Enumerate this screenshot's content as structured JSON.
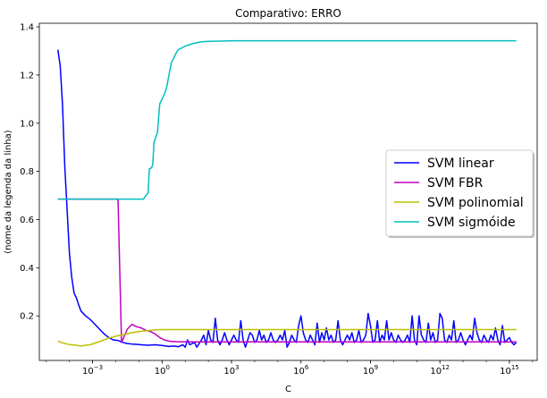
{
  "chart_data": {
    "type": "line",
    "title": "Comparativo: ERRO",
    "xlabel": "C",
    "ylabel": "(nome da legenda da linha)",
    "xscale": "log",
    "xlim_exponent": [
      -5.3,
      16.2
    ],
    "ylim": [
      0.015,
      1.415
    ],
    "xticks": [
      {
        "exp": -3,
        "label": "10",
        "sup": "−3"
      },
      {
        "exp": 0,
        "label": "10",
        "sup": "0"
      },
      {
        "exp": 3,
        "label": "10",
        "sup": "3"
      },
      {
        "exp": 6,
        "label": "10",
        "sup": "6"
      },
      {
        "exp": 9,
        "label": "10",
        "sup": "9"
      },
      {
        "exp": 12,
        "label": "10",
        "sup": "12"
      },
      {
        "exp": 15,
        "label": "10",
        "sup": "15"
      }
    ],
    "yticks": [
      {
        "value": 0.2,
        "label": "0.2"
      },
      {
        "value": 0.4,
        "label": "0.4"
      },
      {
        "value": 0.6,
        "label": "0.6"
      },
      {
        "value": 0.8,
        "label": "0.8"
      },
      {
        "value": 1.0,
        "label": "1.0"
      },
      {
        "value": 1.2,
        "label": "1.2"
      },
      {
        "value": 1.4,
        "label": "1.4"
      }
    ],
    "grid": false,
    "legend_position": "center-right",
    "series": [
      {
        "name": "SVM linear",
        "color": "#0000ff",
        "points": [
          [
            -4.5,
            1.305
          ],
          [
            -4.4,
            1.24
          ],
          [
            -4.3,
            1.08
          ],
          [
            -4.2,
            0.82
          ],
          [
            -4.1,
            0.64
          ],
          [
            -4.0,
            0.46
          ],
          [
            -3.9,
            0.36
          ],
          [
            -3.8,
            0.295
          ],
          [
            -3.7,
            0.275
          ],
          [
            -3.6,
            0.245
          ],
          [
            -3.5,
            0.22
          ],
          [
            -3.3,
            0.2
          ],
          [
            -3.1,
            0.185
          ],
          [
            -2.9,
            0.165
          ],
          [
            -2.7,
            0.145
          ],
          [
            -2.5,
            0.125
          ],
          [
            -2.3,
            0.11
          ],
          [
            -2.1,
            0.1
          ],
          [
            -1.9,
            0.098
          ],
          [
            -1.7,
            0.09
          ],
          [
            -1.5,
            0.085
          ],
          [
            -1.3,
            0.083
          ],
          [
            -1.1,
            0.082
          ],
          [
            -0.9,
            0.08
          ],
          [
            -0.6,
            0.078
          ],
          [
            -0.3,
            0.08
          ],
          [
            0.0,
            0.077
          ],
          [
            0.3,
            0.073
          ],
          [
            0.5,
            0.075
          ],
          [
            0.7,
            0.072
          ],
          [
            0.9,
            0.08
          ],
          [
            1.0,
            0.07
          ],
          [
            1.1,
            0.1
          ],
          [
            1.2,
            0.08
          ],
          [
            1.4,
            0.09
          ],
          [
            1.5,
            0.07
          ],
          [
            1.7,
            0.1
          ],
          [
            1.8,
            0.12
          ],
          [
            1.9,
            0.08
          ],
          [
            2.0,
            0.14
          ],
          [
            2.1,
            0.1
          ],
          [
            2.2,
            0.09
          ],
          [
            2.3,
            0.19
          ],
          [
            2.4,
            0.1
          ],
          [
            2.5,
            0.08
          ],
          [
            2.6,
            0.1
          ],
          [
            2.7,
            0.13
          ],
          [
            2.8,
            0.1
          ],
          [
            2.9,
            0.08
          ],
          [
            3.0,
            0.1
          ],
          [
            3.1,
            0.12
          ],
          [
            3.2,
            0.1
          ],
          [
            3.3,
            0.09
          ],
          [
            3.4,
            0.18
          ],
          [
            3.5,
            0.1
          ],
          [
            3.6,
            0.07
          ],
          [
            3.7,
            0.1
          ],
          [
            3.8,
            0.13
          ],
          [
            3.9,
            0.12
          ],
          [
            4.0,
            0.09
          ],
          [
            4.1,
            0.1
          ],
          [
            4.2,
            0.14
          ],
          [
            4.3,
            0.1
          ],
          [
            4.4,
            0.12
          ],
          [
            4.5,
            0.09
          ],
          [
            4.6,
            0.1
          ],
          [
            4.7,
            0.13
          ],
          [
            4.8,
            0.1
          ],
          [
            4.9,
            0.09
          ],
          [
            5.0,
            0.1
          ],
          [
            5.1,
            0.12
          ],
          [
            5.2,
            0.1
          ],
          [
            5.3,
            0.14
          ],
          [
            5.4,
            0.07
          ],
          [
            5.5,
            0.09
          ],
          [
            5.6,
            0.12
          ],
          [
            5.7,
            0.1
          ],
          [
            5.8,
            0.09
          ],
          [
            5.9,
            0.16
          ],
          [
            6.0,
            0.2
          ],
          [
            6.1,
            0.13
          ],
          [
            6.2,
            0.1
          ],
          [
            6.3,
            0.09
          ],
          [
            6.4,
            0.12
          ],
          [
            6.5,
            0.1
          ],
          [
            6.6,
            0.08
          ],
          [
            6.7,
            0.17
          ],
          [
            6.8,
            0.09
          ],
          [
            6.9,
            0.13
          ],
          [
            7.0,
            0.1
          ],
          [
            7.1,
            0.15
          ],
          [
            7.2,
            0.1
          ],
          [
            7.3,
            0.12
          ],
          [
            7.4,
            0.09
          ],
          [
            7.5,
            0.1
          ],
          [
            7.6,
            0.18
          ],
          [
            7.7,
            0.1
          ],
          [
            7.8,
            0.08
          ],
          [
            7.9,
            0.1
          ],
          [
            8.0,
            0.12
          ],
          [
            8.1,
            0.1
          ],
          [
            8.2,
            0.13
          ],
          [
            8.3,
            0.09
          ],
          [
            8.4,
            0.1
          ],
          [
            8.5,
            0.14
          ],
          [
            8.6,
            0.09
          ],
          [
            8.7,
            0.1
          ],
          [
            8.8,
            0.12
          ],
          [
            8.9,
            0.21
          ],
          [
            9.0,
            0.16
          ],
          [
            9.1,
            0.09
          ],
          [
            9.2,
            0.1
          ],
          [
            9.3,
            0.18
          ],
          [
            9.4,
            0.09
          ],
          [
            9.5,
            0.12
          ],
          [
            9.6,
            0.1
          ],
          [
            9.7,
            0.18
          ],
          [
            9.8,
            0.1
          ],
          [
            9.9,
            0.13
          ],
          [
            10.0,
            0.1
          ],
          [
            10.1,
            0.09
          ],
          [
            10.2,
            0.12
          ],
          [
            10.3,
            0.1
          ],
          [
            10.4,
            0.09
          ],
          [
            10.5,
            0.1
          ],
          [
            10.6,
            0.12
          ],
          [
            10.7,
            0.09
          ],
          [
            10.8,
            0.2
          ],
          [
            10.9,
            0.1
          ],
          [
            11.0,
            0.08
          ],
          [
            11.1,
            0.2
          ],
          [
            11.2,
            0.12
          ],
          [
            11.3,
            0.1
          ],
          [
            11.4,
            0.09
          ],
          [
            11.5,
            0.17
          ],
          [
            11.6,
            0.1
          ],
          [
            11.7,
            0.13
          ],
          [
            11.8,
            0.09
          ],
          [
            11.9,
            0.1
          ],
          [
            12.0,
            0.21
          ],
          [
            12.1,
            0.19
          ],
          [
            12.2,
            0.1
          ],
          [
            12.3,
            0.09
          ],
          [
            12.4,
            0.12
          ],
          [
            12.5,
            0.1
          ],
          [
            12.6,
            0.18
          ],
          [
            12.7,
            0.09
          ],
          [
            12.8,
            0.1
          ],
          [
            12.9,
            0.13
          ],
          [
            13.0,
            0.1
          ],
          [
            13.1,
            0.08
          ],
          [
            13.2,
            0.1
          ],
          [
            13.3,
            0.12
          ],
          [
            13.4,
            0.1
          ],
          [
            13.5,
            0.19
          ],
          [
            13.6,
            0.13
          ],
          [
            13.7,
            0.1
          ],
          [
            13.8,
            0.09
          ],
          [
            13.9,
            0.12
          ],
          [
            14.0,
            0.1
          ],
          [
            14.1,
            0.09
          ],
          [
            14.2,
            0.12
          ],
          [
            14.3,
            0.1
          ],
          [
            14.4,
            0.15
          ],
          [
            14.5,
            0.1
          ],
          [
            14.6,
            0.08
          ],
          [
            14.7,
            0.16
          ],
          [
            14.8,
            0.09
          ],
          [
            14.9,
            0.1
          ],
          [
            15.0,
            0.11
          ],
          [
            15.1,
            0.09
          ],
          [
            15.2,
            0.08
          ],
          [
            15.3,
            0.09
          ]
        ]
      },
      {
        "name": "SVM FBR",
        "color": "#bf00bf",
        "points": [
          [
            -4.5,
            0.685
          ],
          [
            -1.95,
            0.685
          ],
          [
            -1.9,
            0.68
          ],
          [
            -1.75,
            0.09
          ],
          [
            -1.7,
            0.1
          ],
          [
            -1.5,
            0.145
          ],
          [
            -1.3,
            0.165
          ],
          [
            -1.1,
            0.155
          ],
          [
            -0.9,
            0.15
          ],
          [
            -0.7,
            0.14
          ],
          [
            -0.5,
            0.135
          ],
          [
            -0.3,
            0.125
          ],
          [
            -0.1,
            0.11
          ],
          [
            0.1,
            0.1
          ],
          [
            0.3,
            0.095
          ],
          [
            0.6,
            0.093
          ],
          [
            1.0,
            0.092
          ],
          [
            2.0,
            0.092
          ],
          [
            5.0,
            0.092
          ],
          [
            10.0,
            0.092
          ],
          [
            15.3,
            0.092
          ]
        ]
      },
      {
        "name": "SVM polinomial",
        "color": "#bfbf00",
        "points": [
          [
            -4.5,
            0.095
          ],
          [
            -4.3,
            0.088
          ],
          [
            -4.1,
            0.083
          ],
          [
            -3.9,
            0.08
          ],
          [
            -3.7,
            0.078
          ],
          [
            -3.5,
            0.075
          ],
          [
            -3.3,
            0.078
          ],
          [
            -3.1,
            0.08
          ],
          [
            -2.9,
            0.087
          ],
          [
            -2.7,
            0.093
          ],
          [
            -2.5,
            0.1
          ],
          [
            -2.3,
            0.108
          ],
          [
            -2.1,
            0.113
          ],
          [
            -1.9,
            0.118
          ],
          [
            -1.7,
            0.122
          ],
          [
            -1.5,
            0.126
          ],
          [
            -1.3,
            0.13
          ],
          [
            -1.1,
            0.133
          ],
          [
            -0.9,
            0.136
          ],
          [
            -0.7,
            0.138
          ],
          [
            -0.5,
            0.14
          ],
          [
            -0.3,
            0.142
          ],
          [
            0.0,
            0.143
          ],
          [
            1.0,
            0.143
          ],
          [
            5.0,
            0.143
          ],
          [
            10.0,
            0.143
          ],
          [
            15.3,
            0.143
          ]
        ]
      },
      {
        "name": "SVM sigmóide",
        "color": "#00bfbf",
        "points": [
          [
            -4.5,
            0.685
          ],
          [
            -1.0,
            0.685
          ],
          [
            -0.8,
            0.685
          ],
          [
            -0.7,
            0.7
          ],
          [
            -0.6,
            0.71
          ],
          [
            -0.55,
            0.81
          ],
          [
            -0.45,
            0.815
          ],
          [
            -0.4,
            0.83
          ],
          [
            -0.35,
            0.92
          ],
          [
            -0.2,
            0.96
          ],
          [
            -0.1,
            1.08
          ],
          [
            0.0,
            1.1
          ],
          [
            0.1,
            1.12
          ],
          [
            0.2,
            1.15
          ],
          [
            0.3,
            1.2
          ],
          [
            0.4,
            1.25
          ],
          [
            0.5,
            1.27
          ],
          [
            0.6,
            1.29
          ],
          [
            0.7,
            1.305
          ],
          [
            0.8,
            1.31
          ],
          [
            1.0,
            1.32
          ],
          [
            1.3,
            1.33
          ],
          [
            1.7,
            1.338
          ],
          [
            2.0,
            1.34
          ],
          [
            3.0,
            1.342
          ],
          [
            6.0,
            1.342
          ],
          [
            10.0,
            1.342
          ],
          [
            15.3,
            1.342
          ]
        ]
      }
    ]
  }
}
